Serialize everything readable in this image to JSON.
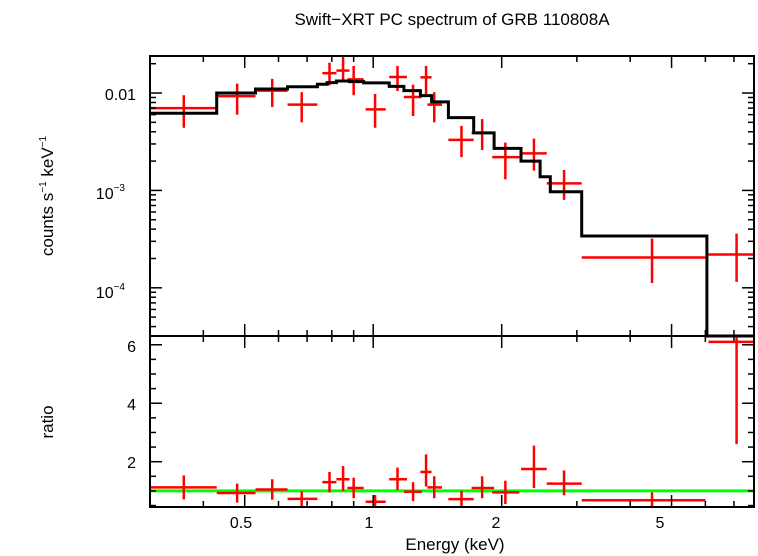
{
  "chart_data": [
    {
      "panel": "spectrum",
      "type": "scatter",
      "title": "Swift−XRT PC spectrum of GRB 110808A",
      "xlabel": "Energy (keV)",
      "ylabel_parts": [
        "counts s",
        "−1",
        " keV",
        "−1"
      ],
      "xscale": "log",
      "yscale": "log",
      "xlim": [
        0.3,
        7.8
      ],
      "ylim": [
        3.2e-05,
        0.024
      ],
      "yticks": [
        {
          "value": 0.01,
          "label": "0.01"
        },
        {
          "value": 0.001,
          "label_base": "10",
          "label_exp": "−3"
        },
        {
          "value": 0.0001,
          "label_base": "10",
          "label_exp": "−4"
        }
      ],
      "data": [
        {
          "x": 0.36,
          "xlo": 0.3,
          "xhi": 0.43,
          "y": 0.007,
          "ylo": 0.0044,
          "yhi": 0.0095
        },
        {
          "x": 0.48,
          "xlo": 0.43,
          "xhi": 0.53,
          "y": 0.0093,
          "ylo": 0.006,
          "yhi": 0.0125
        },
        {
          "x": 0.58,
          "xlo": 0.53,
          "xhi": 0.63,
          "y": 0.0106,
          "ylo": 0.0072,
          "yhi": 0.014
        },
        {
          "x": 0.68,
          "xlo": 0.63,
          "xhi": 0.74,
          "y": 0.0076,
          "ylo": 0.005,
          "yhi": 0.0102
        },
        {
          "x": 0.79,
          "xlo": 0.76,
          "xhi": 0.82,
          "y": 0.016,
          "ylo": 0.012,
          "yhi": 0.0205
        },
        {
          "x": 0.85,
          "xlo": 0.82,
          "xhi": 0.88,
          "y": 0.017,
          "ylo": 0.013,
          "yhi": 0.024
        },
        {
          "x": 0.9,
          "xlo": 0.87,
          "xhi": 0.95,
          "y": 0.0138,
          "ylo": 0.0095,
          "yhi": 0.019
        },
        {
          "x": 1.01,
          "xlo": 0.96,
          "xhi": 1.07,
          "y": 0.0068,
          "ylo": 0.0044,
          "yhi": 0.0098
        },
        {
          "x": 1.14,
          "xlo": 1.09,
          "xhi": 1.2,
          "y": 0.0146,
          "ylo": 0.0105,
          "yhi": 0.019
        },
        {
          "x": 1.24,
          "xlo": 1.18,
          "xhi": 1.3,
          "y": 0.0091,
          "ylo": 0.0058,
          "yhi": 0.0122
        },
        {
          "x": 1.33,
          "xlo": 1.29,
          "xhi": 1.37,
          "y": 0.0145,
          "ylo": 0.0095,
          "yhi": 0.019
        },
        {
          "x": 1.39,
          "xlo": 1.34,
          "xhi": 1.45,
          "y": 0.0076,
          "ylo": 0.005,
          "yhi": 0.0102
        },
        {
          "x": 1.61,
          "xlo": 1.5,
          "xhi": 1.72,
          "y": 0.0033,
          "ylo": 0.0022,
          "yhi": 0.0046
        },
        {
          "x": 1.8,
          "xlo": 1.7,
          "xhi": 1.92,
          "y": 0.0039,
          "ylo": 0.0026,
          "yhi": 0.0054
        },
        {
          "x": 2.04,
          "xlo": 1.9,
          "xhi": 2.2,
          "y": 0.0022,
          "ylo": 0.0013,
          "yhi": 0.0031
        },
        {
          "x": 2.38,
          "xlo": 2.22,
          "xhi": 2.55,
          "y": 0.0024,
          "ylo": 0.0016,
          "yhi": 0.0034
        },
        {
          "x": 2.8,
          "xlo": 2.55,
          "xhi": 3.08,
          "y": 0.00118,
          "ylo": 0.0008,
          "yhi": 0.00162
        },
        {
          "x": 4.5,
          "xlo": 3.08,
          "xhi": 6.0,
          "y": 0.000205,
          "ylo": 0.000112,
          "yhi": 0.00032
        },
        {
          "x": 7.1,
          "xlo": 6.1,
          "xhi": 7.8,
          "y": 0.00022,
          "ylo": 0.000115,
          "yhi": 0.00036
        }
      ],
      "model": {
        "edges": [
          0.3,
          0.43,
          0.53,
          0.63,
          0.74,
          0.78,
          0.82,
          0.88,
          0.95,
          1.09,
          1.18,
          1.29,
          1.37,
          1.5,
          1.72,
          1.92,
          2.22,
          2.46,
          2.6,
          3.08,
          6.05,
          7.8
        ],
        "values": [
          0.0062,
          0.01,
          0.011,
          0.0116,
          0.0123,
          0.0128,
          0.0133,
          0.0131,
          0.0127,
          0.0117,
          0.0106,
          0.0094,
          0.0081,
          0.0056,
          0.0039,
          0.0027,
          0.002,
          0.00138,
          0.00097,
          0.00034,
          1e-05
        ]
      }
    },
    {
      "panel": "ratio",
      "type": "scatter",
      "xlabel": "Energy (keV)",
      "ylabel": "ratio",
      "xscale": "log",
      "xlim": [
        0.3,
        7.8
      ],
      "ylim": [
        0.45,
        6.3
      ],
      "xticks": [
        {
          "value": 0.5,
          "label": "0.5"
        },
        {
          "value": 1,
          "label": "1"
        },
        {
          "value": 2,
          "label": "2"
        },
        {
          "value": 5,
          "label": "5"
        }
      ],
      "yticks": [
        {
          "value": 2,
          "label": "2"
        },
        {
          "value": 4,
          "label": "4"
        },
        {
          "value": 6,
          "label": "6"
        }
      ],
      "reference_line": 1.0,
      "data": [
        {
          "x": 0.36,
          "xlo": 0.3,
          "xhi": 0.43,
          "y": 1.12,
          "ylo": 0.71,
          "yhi": 1.53
        },
        {
          "x": 0.48,
          "xlo": 0.43,
          "xhi": 0.53,
          "y": 0.93,
          "ylo": 0.6,
          "yhi": 1.25
        },
        {
          "x": 0.58,
          "xlo": 0.53,
          "xhi": 0.63,
          "y": 1.05,
          "ylo": 0.7,
          "yhi": 1.4
        },
        {
          "x": 0.68,
          "xlo": 0.63,
          "xhi": 0.74,
          "y": 0.73,
          "ylo": 0.48,
          "yhi": 0.98
        },
        {
          "x": 0.79,
          "xlo": 0.76,
          "xhi": 0.82,
          "y": 1.3,
          "ylo": 0.95,
          "yhi": 1.65
        },
        {
          "x": 0.85,
          "xlo": 0.82,
          "xhi": 0.88,
          "y": 1.4,
          "ylo": 1.0,
          "yhi": 1.85
        },
        {
          "x": 0.9,
          "xlo": 0.87,
          "xhi": 0.95,
          "y": 1.1,
          "ylo": 0.75,
          "yhi": 1.45
        },
        {
          "x": 1.01,
          "xlo": 0.96,
          "xhi": 1.07,
          "y": 0.63,
          "ylo": 0.45,
          "yhi": 0.86
        },
        {
          "x": 1.14,
          "xlo": 1.09,
          "xhi": 1.2,
          "y": 1.4,
          "ylo": 1.03,
          "yhi": 1.8
        },
        {
          "x": 1.24,
          "xlo": 1.18,
          "xhi": 1.3,
          "y": 0.97,
          "ylo": 0.65,
          "yhi": 1.3
        },
        {
          "x": 1.33,
          "xlo": 1.29,
          "xhi": 1.37,
          "y": 1.65,
          "ylo": 1.15,
          "yhi": 2.25
        },
        {
          "x": 1.39,
          "xlo": 1.34,
          "xhi": 1.45,
          "y": 1.12,
          "ylo": 0.75,
          "yhi": 1.5
        },
        {
          "x": 1.61,
          "xlo": 1.5,
          "xhi": 1.72,
          "y": 0.72,
          "ylo": 0.48,
          "yhi": 1.0
        },
        {
          "x": 1.8,
          "xlo": 1.7,
          "xhi": 1.92,
          "y": 1.1,
          "ylo": 0.75,
          "yhi": 1.5
        },
        {
          "x": 2.04,
          "xlo": 1.9,
          "xhi": 2.2,
          "y": 0.95,
          "ylo": 0.55,
          "yhi": 1.35
        },
        {
          "x": 2.38,
          "xlo": 2.22,
          "xhi": 2.55,
          "y": 1.75,
          "ylo": 1.1,
          "yhi": 2.55
        },
        {
          "x": 2.8,
          "xlo": 2.55,
          "xhi": 3.08,
          "y": 1.25,
          "ylo": 0.85,
          "yhi": 1.7
        },
        {
          "x": 4.5,
          "xlo": 3.08,
          "xhi": 6.0,
          "y": 0.68,
          "ylo": 0.45,
          "yhi": 0.95
        },
        {
          "x": 7.1,
          "xlo": 6.1,
          "xhi": 7.8,
          "y": 6.1,
          "ylo": 2.6,
          "yhi": 6.3
        }
      ]
    }
  ],
  "colors": {
    "data": "#ff0000",
    "model": "#000000",
    "reference": "#00ff00",
    "axes": "#000000",
    "background": "#ffffff"
  }
}
